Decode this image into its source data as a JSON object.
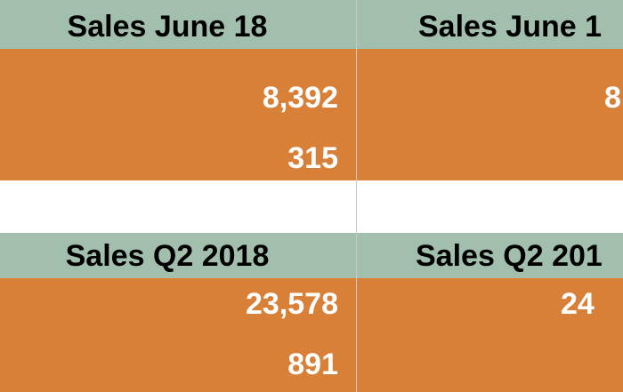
{
  "blocks": [
    {
      "left": {
        "header": "Sales June 18",
        "rows": [
          "8,392",
          "315"
        ]
      },
      "right": {
        "header": "Sales June 1",
        "rows": [
          "8"
        ]
      }
    },
    {
      "left": {
        "header": "Sales Q2 2018",
        "rows": [
          "23,578",
          "891"
        ]
      },
      "right": {
        "header": "Sales Q2 201",
        "rows": [
          "24"
        ]
      }
    }
  ]
}
